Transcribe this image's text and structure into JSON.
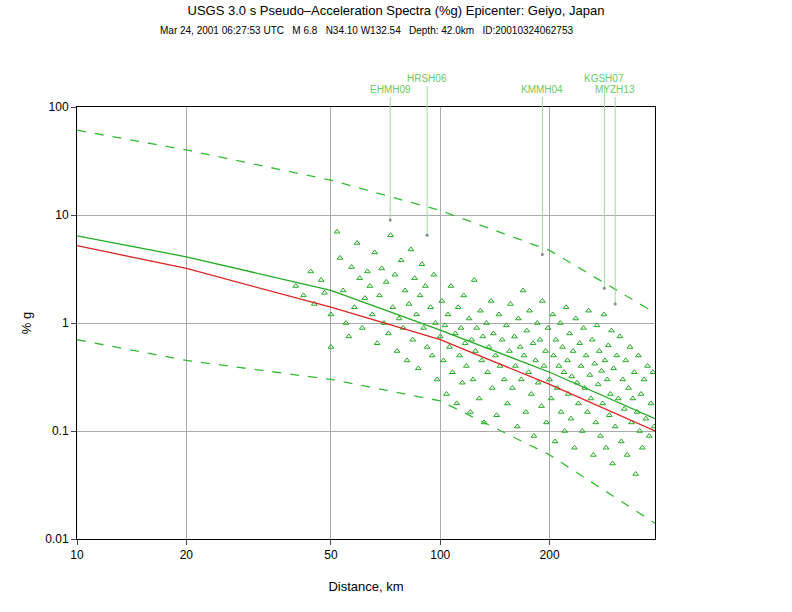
{
  "chart_data": {
    "type": "scatter",
    "title": "USGS 3.0 s Pseudo–Acceleration Spectra (%g) Epicenter: Geiyo, Japan",
    "subtitle": "Mar 24, 2001 06:27:53 UTC   M 6.8   N34.10 W132.54   Depth: 42.0km   ID:20010324062753",
    "x_label": "Distance, km",
    "y_label": "% g",
    "log": true,
    "grid": true,
    "xlim": [
      10,
      390
    ],
    "ylim": [
      0.01,
      100
    ],
    "xticks": [
      10,
      20,
      50,
      100,
      200
    ],
    "yticks": [
      0.01,
      0.1,
      1,
      10,
      100
    ],
    "series": [
      {
        "type": "scatter",
        "color": "#22aa22",
        "marker": "triangle-up-open",
        "x": [
          40,
          42,
          44,
          45,
          47,
          48,
          50,
          50,
          52,
          53,
          54,
          55,
          56,
          57,
          58,
          59,
          60,
          61,
          62,
          63,
          64,
          65,
          66,
          67,
          68,
          69,
          70,
          71,
          72,
          73,
          74,
          75,
          76,
          77,
          78,
          79,
          80,
          81,
          82,
          83,
          84,
          85,
          86,
          87,
          88,
          89,
          90,
          91,
          92,
          94,
          95,
          96,
          97,
          98,
          100,
          101,
          102,
          103,
          104,
          105,
          106,
          107,
          108,
          110,
          111,
          112,
          113,
          114,
          115,
          116,
          117,
          118,
          120,
          121,
          122,
          123,
          124,
          125,
          126,
          128,
          129,
          130,
          131,
          132,
          134,
          135,
          136,
          138,
          139,
          140,
          142,
          143,
          145,
          146,
          148,
          150,
          152,
          153,
          155,
          156,
          158,
          160,
          161,
          163,
          164,
          166,
          167,
          169,
          170,
          172,
          173,
          175,
          176,
          178,
          180,
          181,
          183,
          185,
          186,
          188,
          190,
          191,
          193,
          195,
          196,
          198,
          200,
          202,
          204,
          205,
          207,
          208,
          210,
          212,
          214,
          215,
          217,
          219,
          220,
          222,
          224,
          225,
          227,
          229,
          230,
          232,
          234,
          236,
          238,
          240,
          242,
          244,
          246,
          248,
          250,
          252,
          254,
          256,
          258,
          260,
          262,
          264,
          266,
          268,
          270,
          272,
          274,
          276,
          278,
          280,
          282,
          284,
          286,
          288,
          290,
          292,
          294,
          296,
          298,
          300,
          303,
          306,
          309,
          312,
          315,
          318,
          321,
          324,
          327,
          330,
          333,
          336,
          339,
          342,
          345,
          348,
          351,
          354,
          357,
          360,
          364,
          368,
          372,
          376,
          380,
          385,
          388
        ],
        "values": [
          2.2,
          1.8,
          3.0,
          1.5,
          2.5,
          1.9,
          1.2,
          0.6,
          7.0,
          4.0,
          2.0,
          1.0,
          0.75,
          3.3,
          1.4,
          5.5,
          2.6,
          0.9,
          1.7,
          3.0,
          2.2,
          1.2,
          4.5,
          0.65,
          1.8,
          3.2,
          1.0,
          2.4,
          0.8,
          6.5,
          1.4,
          2.8,
          0.55,
          1.1,
          3.8,
          0.9,
          2.0,
          0.45,
          1.5,
          4.8,
          0.7,
          2.6,
          1.2,
          0.38,
          1.8,
          3.5,
          0.9,
          2.2,
          0.6,
          1.4,
          0.5,
          2.8,
          1.0,
          0.3,
          0.75,
          1.6,
          0.45,
          0.95,
          0.22,
          1.2,
          0.6,
          2.2,
          0.35,
          0.8,
          0.18,
          1.4,
          0.5,
          0.9,
          0.28,
          1.8,
          0.65,
          0.4,
          1.1,
          0.15,
          0.7,
          0.3,
          2.5,
          0.55,
          0.9,
          0.2,
          1.3,
          0.45,
          0.75,
          0.12,
          1.0,
          0.35,
          0.6,
          1.6,
          0.25,
          0.8,
          0.5,
          0.14,
          1.2,
          0.4,
          0.7,
          0.3,
          0.95,
          0.18,
          0.55,
          1.5,
          0.25,
          0.75,
          0.4,
          0.11,
          1.1,
          0.6,
          0.3,
          2.0,
          0.5,
          0.15,
          0.85,
          0.35,
          1.3,
          0.22,
          0.65,
          0.09,
          0.45,
          1.0,
          0.28,
          0.7,
          0.17,
          1.6,
          0.4,
          0.55,
          0.12,
          0.9,
          0.3,
          0.2,
          1.2,
          0.5,
          0.08,
          0.7,
          0.25,
          0.4,
          1.0,
          0.15,
          0.6,
          0.35,
          0.1,
          1.4,
          0.45,
          0.22,
          0.8,
          0.13,
          0.32,
          0.55,
          0.07,
          1.1,
          0.28,
          0.18,
          0.65,
          0.4,
          0.1,
          0.9,
          0.25,
          0.5,
          0.15,
          1.3,
          0.33,
          0.2,
          0.7,
          0.06,
          0.42,
          0.12,
          0.95,
          0.27,
          0.55,
          0.09,
          0.36,
          0.18,
          1.2,
          0.45,
          0.07,
          0.3,
          0.62,
          0.14,
          0.22,
          0.85,
          0.05,
          0.38,
          0.11,
          0.5,
          0.2,
          0.75,
          0.08,
          0.3,
          0.16,
          0.45,
          0.06,
          0.25,
          0.6,
          0.12,
          0.2,
          0.35,
          0.04,
          0.15,
          0.5,
          0.1,
          0.22,
          0.07,
          0.3,
          0.13,
          0.4,
          0.09,
          0.18,
          0.35,
          0.11
        ]
      },
      {
        "type": "line",
        "color": "#22aa22",
        "line_style": "solid",
        "x": [
          10,
          20,
          50,
          100,
          200,
          390
        ],
        "values": [
          6.4,
          4.1,
          2.0,
          0.86,
          0.35,
          0.13
        ]
      },
      {
        "type": "line",
        "color": "#dd2222",
        "line_style": "solid",
        "x": [
          10,
          20,
          50,
          100,
          200,
          390
        ],
        "values": [
          5.2,
          3.2,
          1.4,
          0.7,
          0.27,
          0.1
        ]
      },
      {
        "type": "line",
        "color": "#33bb33",
        "line_style": "dash",
        "x": [
          10,
          20,
          50,
          100,
          200,
          390
        ],
        "values": [
          61,
          40,
          21,
          11,
          4.7,
          1.24
        ]
      },
      {
        "type": "line",
        "color": "#33bb33",
        "line_style": "dash",
        "x": [
          10,
          20,
          50,
          100,
          200,
          390
        ],
        "values": [
          0.7,
          0.45,
          0.3,
          0.19,
          0.06,
          0.014
        ]
      }
    ],
    "annotations": [
      {
        "text": "EHMH09",
        "x": 72.8,
        "y": 9
      },
      {
        "text": "HRSH06",
        "x": 92,
        "y": 6.5
      },
      {
        "text": "KMMH04",
        "x": 191,
        "y": 4.3
      },
      {
        "text": "KGSH07",
        "x": 283,
        "y": 2.1
      },
      {
        "text": "MYZH13",
        "x": 303,
        "y": 1.5
      }
    ]
  }
}
